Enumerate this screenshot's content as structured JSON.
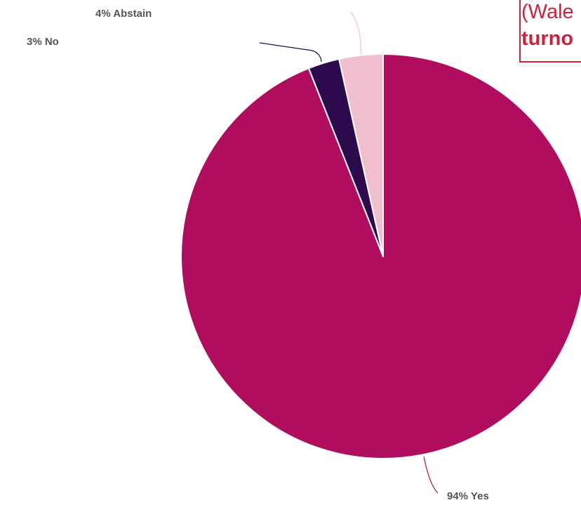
{
  "chart_data": {
    "type": "pie",
    "title": "",
    "slices": [
      {
        "label": "94% Yes",
        "value": 94,
        "color": "#b00d5e"
      },
      {
        "label": "3% No",
        "value": 2.5,
        "color": "#2d0a4e"
      },
      {
        "label": "4% Abstain",
        "value": 3.5,
        "color": "#efbfcf"
      }
    ],
    "legend": "none"
  },
  "caption": {
    "line1": "(Wale",
    "line2": "turno"
  }
}
